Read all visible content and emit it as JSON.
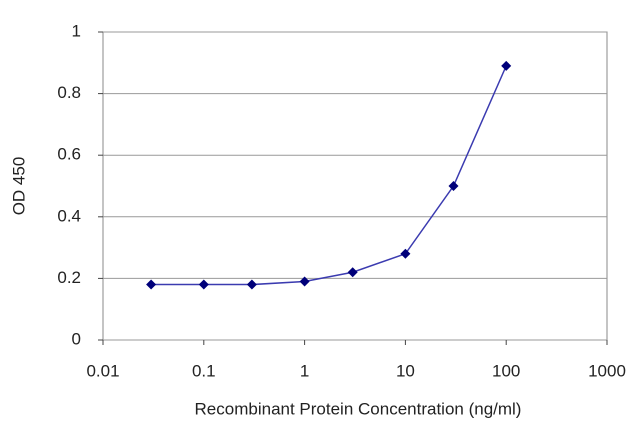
{
  "chart_data": {
    "type": "line",
    "x_label": "Recombinant Protein Concentration (ng/ml)",
    "y_label": "OD 450",
    "xscale": "log",
    "x": [
      0.03,
      0.1,
      0.3,
      1,
      3,
      10,
      30,
      100
    ],
    "series": [
      {
        "color": "#3b3bb0",
        "marker_color": "#00007a",
        "values": [
          0.18,
          0.18,
          0.18,
          0.19,
          0.22,
          0.28,
          0.5,
          0.89
        ]
      }
    ],
    "xlim": [
      0.01,
      1000
    ],
    "xticks": [
      0.01,
      0.1,
      1,
      10,
      100,
      1000
    ],
    "ylim": [
      0,
      1
    ],
    "yticks": [
      0,
      0.2,
      0.4,
      0.6,
      0.8,
      1
    ],
    "grid": true
  }
}
